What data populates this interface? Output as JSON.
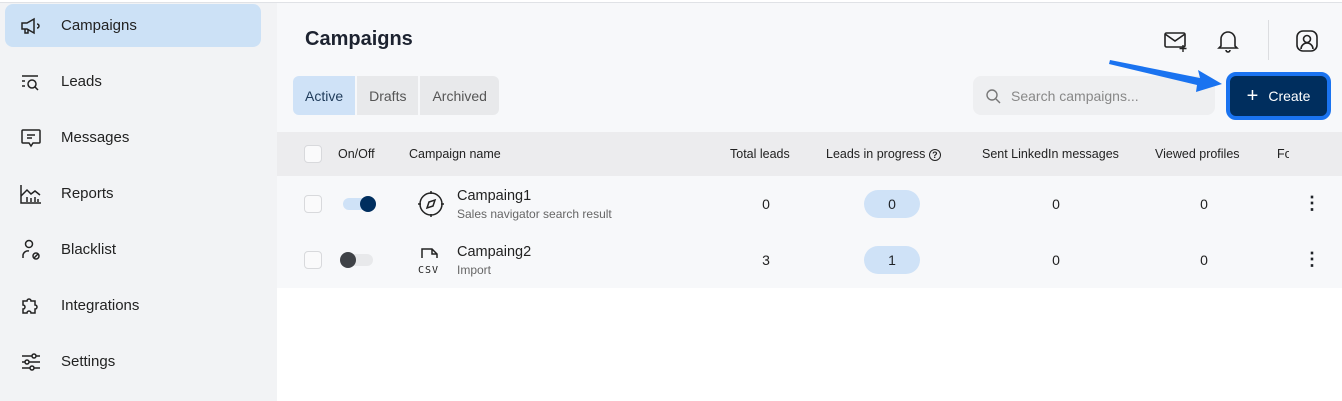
{
  "sidebar": {
    "items": [
      {
        "label": "Campaigns",
        "icon": "megaphone-icon",
        "active": true
      },
      {
        "label": "Leads",
        "icon": "list-search-icon"
      },
      {
        "label": "Messages",
        "icon": "message-icon"
      },
      {
        "label": "Reports",
        "icon": "chart-icon"
      },
      {
        "label": "Blacklist",
        "icon": "user-block-icon"
      },
      {
        "label": "Integrations",
        "icon": "puzzle-icon"
      },
      {
        "label": "Settings",
        "icon": "sliders-icon"
      }
    ]
  },
  "header": {
    "title": "Campaigns",
    "icons": [
      "mail-plus-icon",
      "bell-icon",
      "user-circle-icon"
    ]
  },
  "tabs": [
    {
      "label": "Active",
      "active": true
    },
    {
      "label": "Drafts"
    },
    {
      "label": "Archived"
    }
  ],
  "search": {
    "placeholder": "Search campaigns...",
    "value": ""
  },
  "create_label": "Create",
  "colors": {
    "accent": "#002e5e",
    "highlight": "#1a73f0",
    "pill": "#cfe2f7"
  },
  "table": {
    "columns": [
      "On/Off",
      "Campaign name",
      "Total leads",
      "Leads in progress",
      "Sent LinkedIn messages",
      "Viewed profiles",
      "Fo"
    ],
    "rows": [
      {
        "on": true,
        "name": "Campaing1",
        "source": "Sales navigator search result",
        "icon": "compass-icon",
        "total_leads": "0",
        "in_progress": "0",
        "sent": "0",
        "viewed": "0"
      },
      {
        "on": false,
        "name": "Campaing2",
        "source": "Import",
        "icon": "csv-file-icon",
        "total_leads": "3",
        "in_progress": "1",
        "sent": "0",
        "viewed": "0"
      }
    ]
  }
}
